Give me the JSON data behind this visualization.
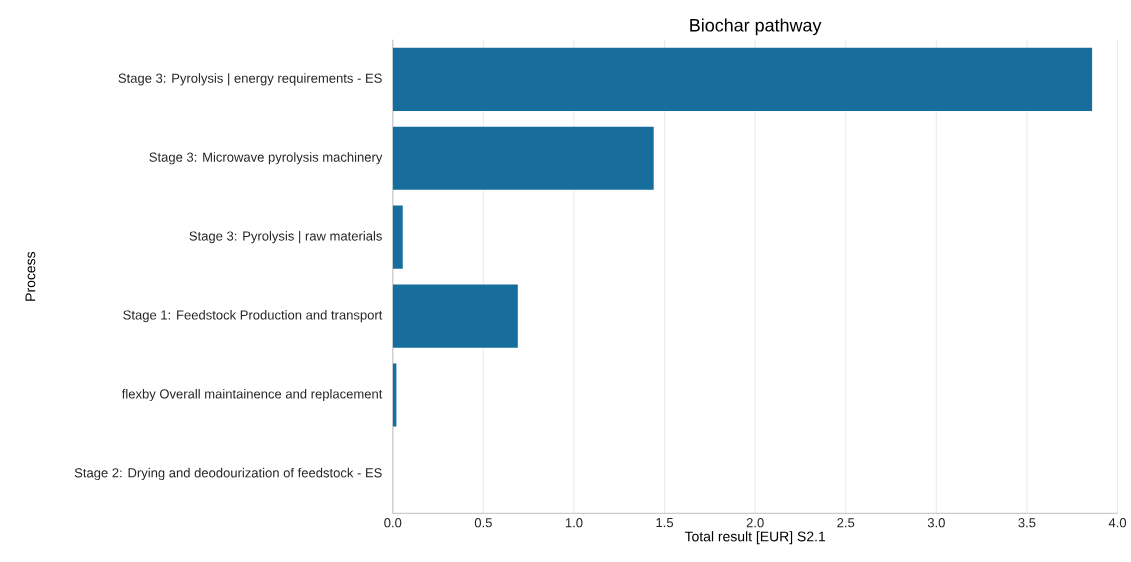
{
  "chart_data": {
    "type": "bar",
    "orientation": "horizontal",
    "title": "Biochar pathway",
    "xlabel": "Total result [EUR] S2.1",
    "ylabel": "Process",
    "categories": [
      "Stage 3: Pyrolysis | energy requirements - ES",
      "Stage 3: Microwave pyrolysis machinery",
      "Stage 3: Pyrolysis | raw materials",
      "Stage 1: Feedstock Production and transport",
      "flexby Overall maintainence and replacement",
      "Stage 2: Drying and deodourization of feedstock - ES"
    ],
    "values": [
      3.86,
      1.44,
      0.055,
      0.69,
      0.02,
      0
    ],
    "color": "#176d9c",
    "xlim": [
      0,
      4.0
    ],
    "xticks": [
      {
        "value": 0,
        "label": "0.0"
      },
      0.5,
      {
        "value": 1,
        "label": "1.0"
      },
      1.5,
      {
        "value": 2,
        "label": "2.0"
      },
      2.5,
      {
        "value": 3,
        "label": "3.0"
      },
      3.5,
      {
        "value": 4,
        "label": "4.0"
      }
    ],
    "grid": "x"
  }
}
